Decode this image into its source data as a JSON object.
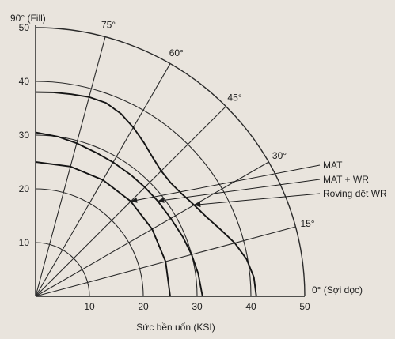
{
  "chart_data": {
    "type": "polar-quadrant",
    "xlabel": "Sức bền uốn (KSI)",
    "x_axis_end_label": "0° (Sợi dọc)",
    "y_axis_top_label": "90° (Fill)",
    "r_ticks": [
      10,
      20,
      30,
      40,
      50
    ],
    "r_lim": [
      0,
      50
    ],
    "angles": [
      15,
      30,
      45,
      60,
      75
    ],
    "angle_labels": [
      "15°",
      "30°",
      "45°",
      "60°",
      "75°"
    ],
    "grid": true,
    "series": [
      {
        "name": "MAT",
        "points": [
          [
            0,
            25
          ],
          [
            15,
            25
          ],
          [
            30,
            25
          ],
          [
            45,
            25
          ],
          [
            60,
            25
          ],
          [
            75,
            25
          ],
          [
            90,
            25
          ]
        ]
      },
      {
        "name": "MAT + WR",
        "points": [
          [
            0,
            31
          ],
          [
            8,
            30.5
          ],
          [
            15,
            30
          ],
          [
            22,
            29.5
          ],
          [
            30,
            29
          ],
          [
            38,
            28.8
          ],
          [
            45,
            28.7
          ],
          [
            52,
            28.7
          ],
          [
            60,
            28.8
          ],
          [
            67,
            29
          ],
          [
            75,
            29.5
          ],
          [
            82,
            30
          ],
          [
            90,
            30.5
          ]
        ]
      },
      {
        "name": "Roving dệt WR",
        "points": [
          [
            0,
            41
          ],
          [
            5,
            40.7
          ],
          [
            10,
            39.8
          ],
          [
            15,
            38.3
          ],
          [
            20,
            36.5
          ],
          [
            25,
            35
          ],
          [
            30,
            34
          ],
          [
            35,
            33.2
          ],
          [
            40,
            32.8
          ],
          [
            45,
            33
          ],
          [
            50,
            33.8
          ],
          [
            55,
            35
          ],
          [
            60,
            36.3
          ],
          [
            65,
            37.5
          ],
          [
            70,
            38.3
          ],
          [
            75,
            38.4
          ],
          [
            80,
            38.2
          ],
          [
            85,
            38.1
          ],
          [
            90,
            38
          ]
        ]
      }
    ]
  }
}
